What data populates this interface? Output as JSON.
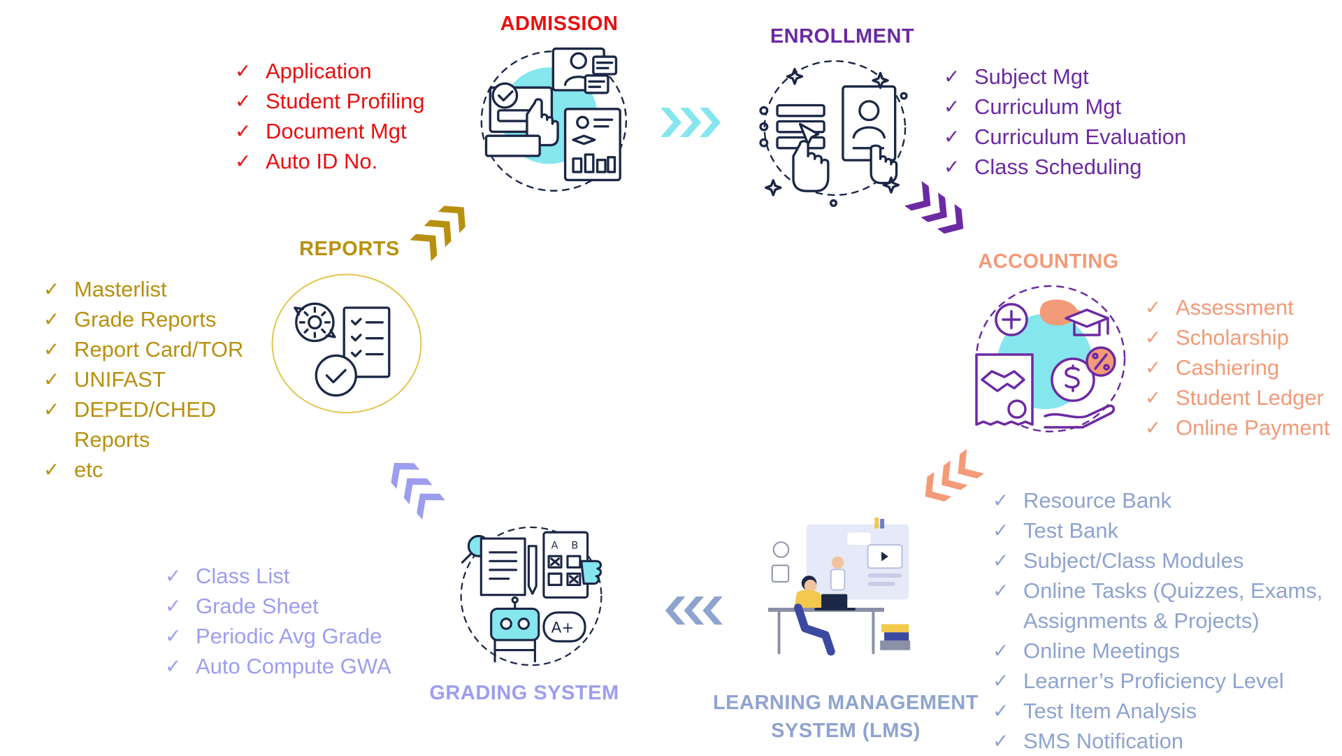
{
  "colors": {
    "admission": "#e8100f",
    "enrollment": "#6b2aa3",
    "accounting": "#f39a78",
    "lms": "#8ea3cf",
    "grading": "#9d9df0",
    "reports": "#b8900f",
    "accent_cyan": "#86e6ee",
    "ink": "#1b2745"
  },
  "admission": {
    "title": "ADMISSION",
    "items": [
      "Application",
      "Student Profiling",
      "Document Mgt",
      "Auto ID No."
    ]
  },
  "enrollment": {
    "title": "ENROLLMENT",
    "items": [
      "Subject Mgt",
      "Curriculum Mgt",
      "Curriculum Evaluation",
      "Class Scheduling"
    ]
  },
  "accounting": {
    "title": "ACCOUNTING",
    "items": [
      "Assessment",
      "Scholarship",
      "Cashiering",
      "Student Ledger",
      "Online Payment"
    ]
  },
  "lms": {
    "title_line1": "LEARNING MANAGEMENT",
    "title_line2": "SYSTEM (LMS)",
    "items": [
      "Resource Bank",
      "Test Bank",
      "Subject/Class Modules",
      "Online Tasks (Quizzes, Exams, Assignments & Projects)",
      "Online Meetings",
      "Learner’s Proficiency Level",
      "Test Item Analysis",
      "SMS Notification"
    ]
  },
  "grading": {
    "title": "GRADING SYSTEM",
    "items": [
      "Class List",
      "Grade Sheet",
      "Periodic Avg Grade",
      "Auto Compute GWA"
    ]
  },
  "reports": {
    "title": "REPORTS",
    "items": [
      "Masterlist",
      "Grade Reports",
      "Report Card/TOR",
      "UNIFAST",
      "DEPED/CHED Reports",
      "etc"
    ]
  },
  "icons": {
    "check": "✓",
    "admission_icon": "online-application-icon",
    "enrollment_icon": "enrollment-form-icon",
    "accounting_icon": "payment-scholarship-icon",
    "lms_icon": "student-at-laptop-icon",
    "grading_icon": "grading-robot-icon",
    "reports_icon": "report-checklist-icon",
    "grading_card_letters": [
      "A",
      "B"
    ],
    "grade_badge": "A+"
  }
}
